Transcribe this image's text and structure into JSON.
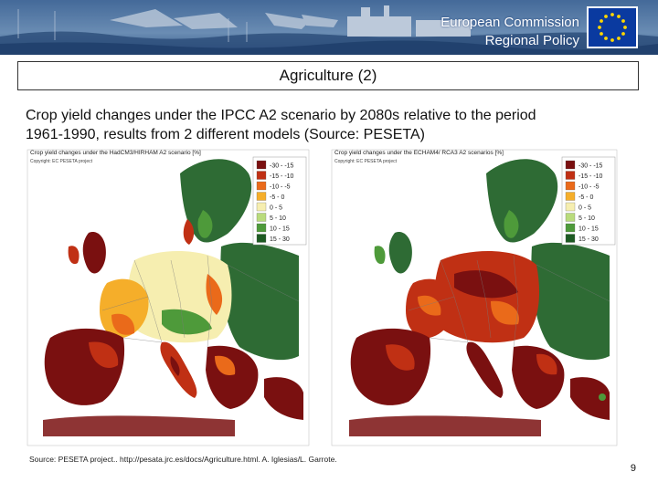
{
  "header": {
    "org_line1": "European Commission",
    "org_line2": "Regional Policy"
  },
  "slide": {
    "title": "Agriculture (2)",
    "caption_line1": "Crop yield changes under the IPCC A2 scenario by 2080s relative to the period",
    "caption_line2": "1961-1990, results from 2 different models (Source: PESETA)",
    "page_number": "9"
  },
  "maps": [
    {
      "title": "Crop yield changes under the HadCM3/HIRHAM A2 scenario [%]",
      "copyright": "Copyright: EC PESETA project"
    },
    {
      "title": "Crop yield changes under the ECHAM4/ RCA3 A2 scenarios [%]",
      "copyright": "Copyright: EC PESETA project"
    }
  ],
  "legend": {
    "items": [
      {
        "label": "-30 - -15",
        "color": "#7a1010"
      },
      {
        "label": "-15 - -10",
        "color": "#c03014"
      },
      {
        "label": "-10 - -5",
        "color": "#ea6a1a"
      },
      {
        "label": "-5 - 0",
        "color": "#f5ae2a"
      },
      {
        "label": "0 - 5",
        "color": "#f6eeb0"
      },
      {
        "label": "5 - 10",
        "color": "#b9db7c"
      },
      {
        "label": "10 - 15",
        "color": "#4e9a3a"
      },
      {
        "label": "15 - 30",
        "color": "#1d5a22"
      }
    ]
  },
  "source": "Source:   PESETA project.. http://pesata.jrc.es/docs/Agriculture.html. A. Iglesias/L. Garrote.",
  "colors": {
    "banner_sky": "#6d8fb5",
    "flag_blue": "#0a3aa0",
    "flag_star": "#ffd700",
    "sea": "#ffffff",
    "land_nonag": "#2e6b34",
    "country_line": "#7a7a7a"
  }
}
